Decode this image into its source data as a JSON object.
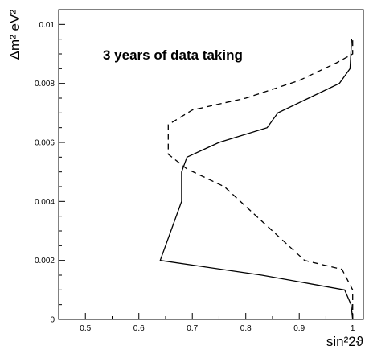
{
  "chart_data": {
    "type": "line",
    "annotation": "3 years of data taking",
    "xlabel": "sin²2ϑ",
    "ylabel": "Δm² eV²",
    "xlim": [
      0.45,
      1.02
    ],
    "ylim": [
      0,
      0.0105
    ],
    "x_ticks": [
      0.5,
      0.6,
      0.7,
      0.8,
      0.9,
      1
    ],
    "y_ticks": [
      0,
      0.002,
      0.004,
      0.006,
      0.008,
      0.01
    ],
    "x_tick_labels": [
      "0.5",
      "0.6",
      "0.7",
      "0.8",
      "0.9",
      "1"
    ],
    "y_tick_labels": [
      "0",
      "0.002",
      "0.004",
      "0.006",
      "0.008",
      "0.01"
    ],
    "grid": false,
    "series": [
      {
        "style": "solid",
        "points": [
          [
            1.0,
            0.0
          ],
          [
            0.997,
            0.0005
          ],
          [
            0.985,
            0.001
          ],
          [
            0.83,
            0.0015
          ],
          [
            0.64,
            0.002
          ],
          [
            0.68,
            0.004
          ],
          [
            0.68,
            0.005
          ],
          [
            0.69,
            0.0055
          ],
          [
            0.75,
            0.006
          ],
          [
            0.84,
            0.0065
          ],
          [
            0.86,
            0.007
          ],
          [
            0.975,
            0.008
          ],
          [
            0.995,
            0.0085
          ],
          [
            0.998,
            0.0095
          ]
        ]
      },
      {
        "style": "dashed",
        "points": [
          [
            1.0,
            0.0
          ],
          [
            1.0,
            0.0005
          ],
          [
            1.0,
            0.001
          ],
          [
            0.98,
            0.0017
          ],
          [
            0.91,
            0.002
          ],
          [
            0.88,
            0.0025
          ],
          [
            0.82,
            0.0035
          ],
          [
            0.76,
            0.0045
          ],
          [
            0.69,
            0.0051
          ],
          [
            0.655,
            0.0056
          ],
          [
            0.655,
            0.0066
          ],
          [
            0.7,
            0.0071
          ],
          [
            0.8,
            0.0075
          ],
          [
            0.9,
            0.0081
          ],
          [
            0.97,
            0.0087
          ],
          [
            1.0,
            0.009
          ],
          [
            1.0,
            0.0095
          ]
        ]
      }
    ]
  }
}
